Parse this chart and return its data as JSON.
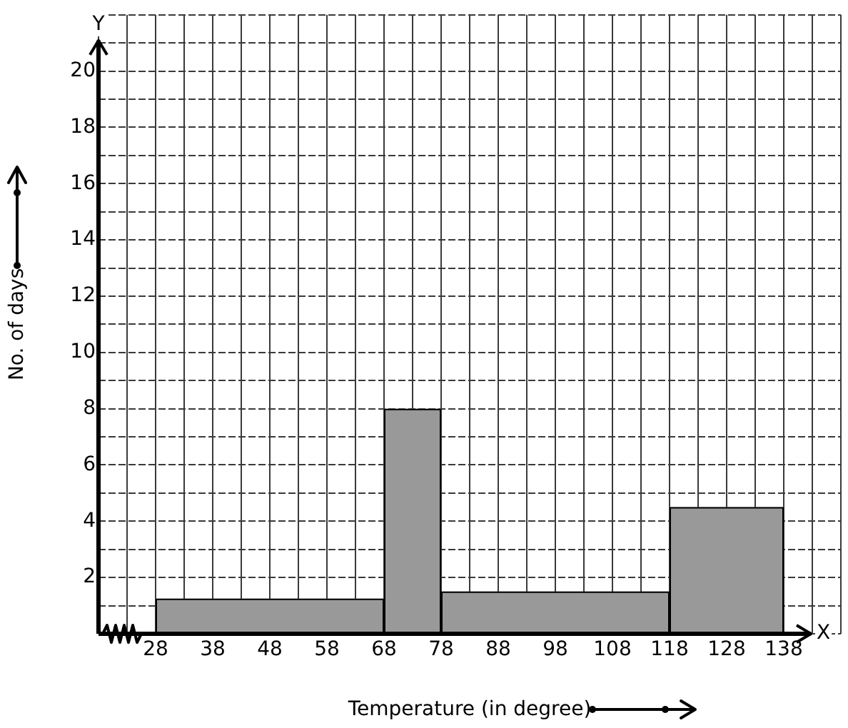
{
  "chart_data": {
    "type": "histogram",
    "xlabel": "Temperature (in degree)",
    "ylabel": "No. of days",
    "bins": [
      28,
      68,
      78,
      118,
      138
    ],
    "values": [
      1.25,
      8,
      1.5,
      4.5
    ],
    "color": "#999999",
    "xlim": [
      18,
      148
    ],
    "ylim": [
      0,
      22
    ],
    "xticks": [
      {
        "value": 18,
        "label": null
      },
      {
        "value": 23,
        "label": null
      },
      28,
      {
        "value": 33,
        "label": null
      },
      38,
      {
        "value": 43,
        "label": null
      },
      48,
      {
        "value": 53,
        "label": null
      },
      58,
      {
        "value": 63,
        "label": null
      },
      68,
      {
        "value": 73,
        "label": null
      },
      78,
      {
        "value": 83,
        "label": null
      },
      88,
      {
        "value": 93,
        "label": null
      },
      98,
      {
        "value": 103,
        "label": null
      },
      108,
      {
        "value": 113,
        "label": null
      },
      118,
      {
        "value": 123,
        "label": null
      },
      128,
      {
        "value": 133,
        "label": null
      },
      138,
      {
        "value": 143,
        "label": null
      },
      {
        "value": 148,
        "label": null
      }
    ],
    "yticks": [
      {
        "value": 0,
        "label": null
      },
      {
        "value": 1,
        "label": null
      },
      2,
      {
        "value": 3,
        "label": null
      },
      4,
      {
        "value": 5,
        "label": null
      },
      6,
      {
        "value": 7,
        "label": null
      },
      8,
      {
        "value": 9,
        "label": null
      },
      10,
      {
        "value": 11,
        "label": null
      },
      12,
      {
        "value": 13,
        "label": null
      },
      14,
      {
        "value": 15,
        "label": null
      },
      16,
      {
        "value": 17,
        "label": null
      },
      18,
      {
        "value": 19,
        "label": null
      },
      20,
      {
        "value": 21,
        "label": null
      },
      {
        "value": 22,
        "label": null
      }
    ],
    "annotations": [
      "Y",
      "X"
    ],
    "grid": true,
    "legend": false
  }
}
